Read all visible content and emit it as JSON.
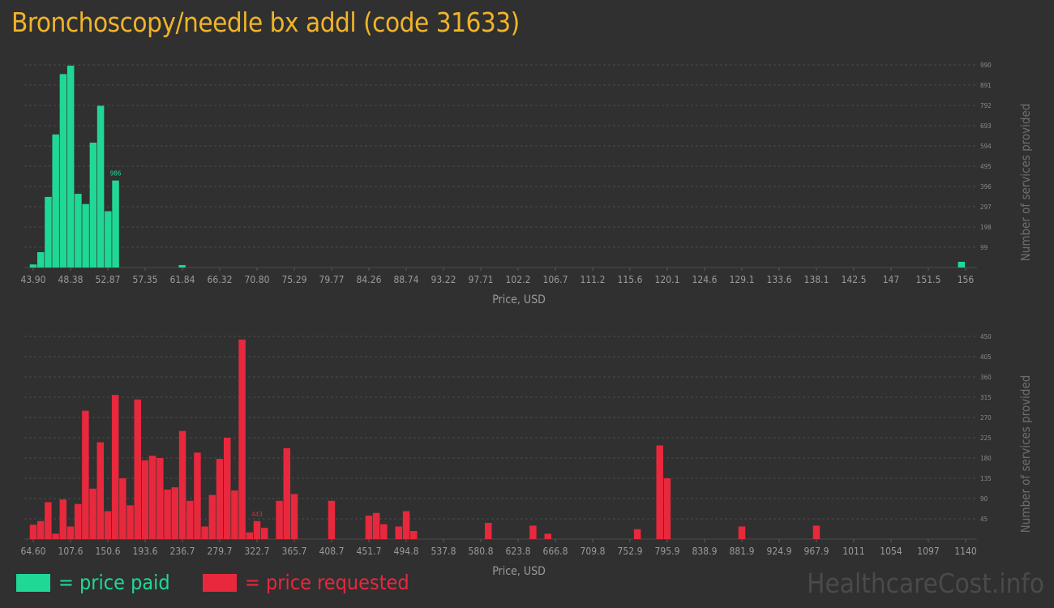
{
  "title": "Bronchoscopy/needle bx addl (code 31633)",
  "colors": {
    "paid": "#20d896",
    "requested": "#e8283c",
    "title": "#f0b428"
  },
  "legend": {
    "paid_label": "= price paid",
    "requested_label": "= price requested"
  },
  "watermark": "HealthcareCost.info",
  "chart_data": [
    {
      "type": "bar",
      "series_key": "paid",
      "xlabel": "Price, USD",
      "ylabel": "Number of services provided",
      "xticks": [
        "43.90",
        "48.38",
        "52.87",
        "57.35",
        "61.84",
        "66.32",
        "70.80",
        "75.29",
        "79.77",
        "84.26",
        "88.74",
        "93.22",
        "97.71",
        "102.2",
        "106.7",
        "111.2",
        "115.6",
        "120.1",
        "124.6",
        "129.1",
        "133.6",
        "138.1",
        "142.5",
        "147",
        "151.5",
        "156"
      ],
      "yticks": [
        99,
        198,
        297,
        396,
        495,
        594,
        693,
        792,
        891,
        990
      ],
      "ylim": [
        0,
        990
      ],
      "xlim": [
        43.9,
        156
      ],
      "grid": true,
      "peak_label": "986",
      "bars": [
        {
          "x": 43.9,
          "y": 15
        },
        {
          "x": 44.8,
          "y": 75
        },
        {
          "x": 45.7,
          "y": 345
        },
        {
          "x": 46.6,
          "y": 650
        },
        {
          "x": 47.5,
          "y": 945
        },
        {
          "x": 48.4,
          "y": 986
        },
        {
          "x": 49.3,
          "y": 360
        },
        {
          "x": 50.2,
          "y": 310
        },
        {
          "x": 51.1,
          "y": 610
        },
        {
          "x": 52.0,
          "y": 790
        },
        {
          "x": 52.9,
          "y": 275
        },
        {
          "x": 53.8,
          "y": 425
        },
        {
          "x": 61.8,
          "y": 12
        },
        {
          "x": 155.5,
          "y": 28
        }
      ]
    },
    {
      "type": "bar",
      "series_key": "requested",
      "xlabel": "Price, USD",
      "ylabel": "Number of services provided",
      "xticks": [
        "64.60",
        "107.6",
        "150.6",
        "193.6",
        "236.7",
        "279.7",
        "322.7",
        "365.7",
        "408.7",
        "451.7",
        "494.8",
        "537.8",
        "580.8",
        "623.8",
        "666.8",
        "709.8",
        "752.9",
        "795.9",
        "838.9",
        "881.9",
        "924.9",
        "967.9",
        "1011",
        "1054",
        "1097",
        "1140"
      ],
      "yticks": [
        45,
        90,
        135,
        180,
        225,
        270,
        315,
        360,
        405,
        450
      ],
      "ylim": [
        0,
        450
      ],
      "xlim": [
        64.6,
        1140
      ],
      "grid": true,
      "peak_label": "443",
      "bars": [
        {
          "x": 64.6,
          "y": 32
        },
        {
          "x": 73.2,
          "y": 40
        },
        {
          "x": 81.8,
          "y": 82
        },
        {
          "x": 90.4,
          "y": 12
        },
        {
          "x": 99.0,
          "y": 88
        },
        {
          "x": 107.6,
          "y": 28
        },
        {
          "x": 116.2,
          "y": 78
        },
        {
          "x": 124.8,
          "y": 285
        },
        {
          "x": 133.4,
          "y": 112
        },
        {
          "x": 142.0,
          "y": 215
        },
        {
          "x": 150.6,
          "y": 62
        },
        {
          "x": 159.2,
          "y": 320
        },
        {
          "x": 167.8,
          "y": 135
        },
        {
          "x": 176.4,
          "y": 75
        },
        {
          "x": 185.0,
          "y": 310
        },
        {
          "x": 193.6,
          "y": 175
        },
        {
          "x": 202.2,
          "y": 185
        },
        {
          "x": 210.8,
          "y": 180
        },
        {
          "x": 219.4,
          "y": 110
        },
        {
          "x": 228.0,
          "y": 115
        },
        {
          "x": 236.7,
          "y": 240
        },
        {
          "x": 245.3,
          "y": 85
        },
        {
          "x": 253.9,
          "y": 192
        },
        {
          "x": 262.5,
          "y": 28
        },
        {
          "x": 271.1,
          "y": 98
        },
        {
          "x": 279.7,
          "y": 178
        },
        {
          "x": 288.3,
          "y": 225
        },
        {
          "x": 296.9,
          "y": 108
        },
        {
          "x": 305.5,
          "y": 443
        },
        {
          "x": 314.1,
          "y": 15
        },
        {
          "x": 322.7,
          "y": 40
        },
        {
          "x": 331.3,
          "y": 25
        },
        {
          "x": 348.5,
          "y": 85
        },
        {
          "x": 357.1,
          "y": 202
        },
        {
          "x": 365.7,
          "y": 100
        },
        {
          "x": 408.7,
          "y": 85
        },
        {
          "x": 451.7,
          "y": 52
        },
        {
          "x": 460.3,
          "y": 58
        },
        {
          "x": 468.9,
          "y": 33
        },
        {
          "x": 486.1,
          "y": 28
        },
        {
          "x": 494.8,
          "y": 62
        },
        {
          "x": 503.4,
          "y": 18
        },
        {
          "x": 589.4,
          "y": 36
        },
        {
          "x": 641.0,
          "y": 30
        },
        {
          "x": 658.2,
          "y": 12
        },
        {
          "x": 761.4,
          "y": 22
        },
        {
          "x": 787.2,
          "y": 208
        },
        {
          "x": 795.8,
          "y": 135
        },
        {
          "x": 881.9,
          "y": 28
        },
        {
          "x": 967.9,
          "y": 30
        }
      ]
    }
  ]
}
